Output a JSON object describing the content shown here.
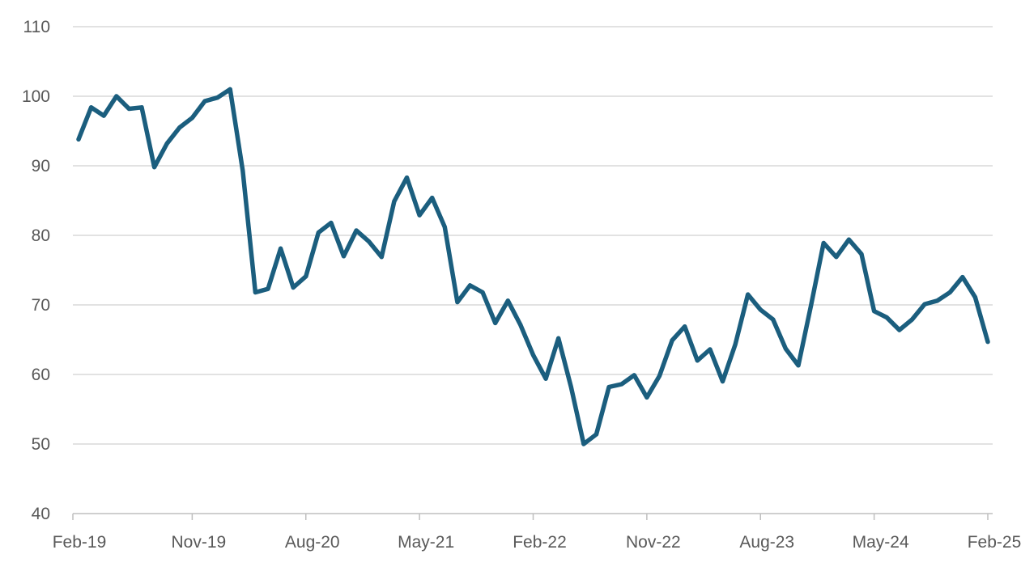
{
  "chart_data": {
    "type": "line",
    "title": "",
    "xlabel": "",
    "ylabel": "",
    "ylim": [
      40,
      110
    ],
    "yticks": [
      40,
      50,
      60,
      70,
      80,
      90,
      100,
      110
    ],
    "grid": true,
    "legend": "none",
    "colors": {
      "line": "#1B5E7E",
      "grid": "#d9d9d9",
      "axis": "#bfbfbf",
      "text": "#595959"
    },
    "x_tick_labels": [
      {
        "label": "Feb-19",
        "index": 0
      },
      {
        "label": "Nov-19",
        "index": 9
      },
      {
        "label": "Aug-20",
        "index": 18
      },
      {
        "label": "May-21",
        "index": 27
      },
      {
        "label": "Feb-22",
        "index": 36
      },
      {
        "label": "Nov-22",
        "index": 45
      },
      {
        "label": "Aug-23",
        "index": 54
      },
      {
        "label": "May-24",
        "index": 63
      },
      {
        "label": "Feb-25",
        "index": 72
      }
    ],
    "x": [
      "2019-02",
      "2019-03",
      "2019-04",
      "2019-05",
      "2019-06",
      "2019-07",
      "2019-08",
      "2019-09",
      "2019-10",
      "2019-11",
      "2019-12",
      "2020-01",
      "2020-02",
      "2020-03",
      "2020-04",
      "2020-05",
      "2020-06",
      "2020-07",
      "2020-08",
      "2020-09",
      "2020-10",
      "2020-11",
      "2020-12",
      "2021-01",
      "2021-02",
      "2021-03",
      "2021-04",
      "2021-05",
      "2021-06",
      "2021-07",
      "2021-08",
      "2021-09",
      "2021-10",
      "2021-11",
      "2021-12",
      "2022-01",
      "2022-02",
      "2022-03",
      "2022-04",
      "2022-05",
      "2022-06",
      "2022-07",
      "2022-08",
      "2022-09",
      "2022-10",
      "2022-11",
      "2022-12",
      "2023-01",
      "2023-02",
      "2023-03",
      "2023-04",
      "2023-05",
      "2023-06",
      "2023-07",
      "2023-08",
      "2023-09",
      "2023-10",
      "2023-11",
      "2023-12",
      "2024-01",
      "2024-02",
      "2024-03",
      "2024-04",
      "2024-05",
      "2024-06",
      "2024-07",
      "2024-08",
      "2024-09",
      "2024-10",
      "2024-11",
      "2024-12",
      "2025-01",
      "2025-02"
    ],
    "series": [
      {
        "values": [
          93.8,
          98.4,
          97.2,
          100.0,
          98.2,
          98.4,
          89.8,
          93.2,
          95.5,
          96.9,
          99.3,
          99.8,
          101.0,
          89.3,
          71.8,
          72.3,
          78.1,
          72.5,
          74.1,
          80.4,
          81.8,
          77.0,
          80.7,
          79.1,
          76.9,
          84.9,
          88.3,
          82.9,
          85.4,
          81.2,
          70.4,
          72.8,
          71.8,
          67.4,
          70.6,
          67.1,
          62.8,
          59.4,
          65.2,
          58.2,
          50.0,
          51.4,
          58.2,
          58.6,
          59.9,
          56.7,
          59.8,
          64.9,
          66.9,
          62.0,
          63.6,
          59.0,
          64.3,
          71.5,
          69.3,
          67.9,
          63.7,
          61.3,
          69.9,
          78.9,
          76.9,
          79.4,
          77.3,
          69.1,
          68.2,
          66.4,
          67.9,
          70.1,
          70.6,
          71.8,
          74.0,
          71.1,
          64.7
        ]
      }
    ]
  }
}
